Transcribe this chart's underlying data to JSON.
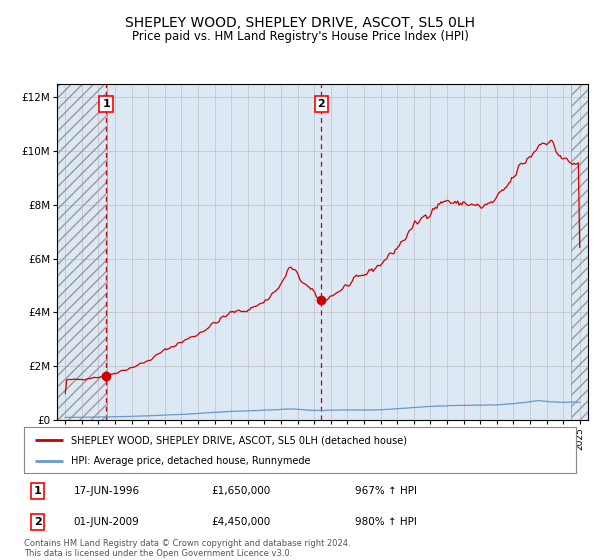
{
  "title": "SHEPLEY WOOD, SHEPLEY DRIVE, ASCOT, SL5 0LH",
  "subtitle": "Price paid vs. HM Land Registry's House Price Index (HPI)",
  "title_fontsize": 10,
  "subtitle_fontsize": 8.5,
  "ylabel_ticks": [
    "£0",
    "£2M",
    "£4M",
    "£6M",
    "£8M",
    "£10M",
    "£12M"
  ],
  "ytick_vals": [
    0,
    2000000,
    4000000,
    6000000,
    8000000,
    10000000,
    12000000
  ],
  "ylim": [
    0,
    12500000
  ],
  "xlim_start": 1993.5,
  "xlim_end": 2025.5,
  "plot_bg_color": "#dce9f5",
  "fig_bg_color": "#ffffff",
  "hatch_left_end": 1996.5,
  "hatch_right_start": 2024.5,
  "marker1_year": 1996.46,
  "marker1_price": 1650000,
  "marker1_label": "1",
  "marker1_date": "17-JUN-1996",
  "marker1_price_str": "£1,650,000",
  "marker1_pct": "967% ↑ HPI",
  "marker2_year": 2009.42,
  "marker2_price": 4450000,
  "marker2_label": "2",
  "marker2_date": "01-JUN-2009",
  "marker2_price_str": "£4,450,000",
  "marker2_pct": "980% ↑ HPI",
  "legend_line1": "SHEPLEY WOOD, SHEPLEY DRIVE, ASCOT, SL5 0LH (detached house)",
  "legend_line2": "HPI: Average price, detached house, Runnymede",
  "red_line_color": "#cc0000",
  "blue_line_color": "#6699cc",
  "marker_color": "#cc0000",
  "footnote": "Contains HM Land Registry data © Crown copyright and database right 2024.\nThis data is licensed under the Open Government Licence v3.0."
}
